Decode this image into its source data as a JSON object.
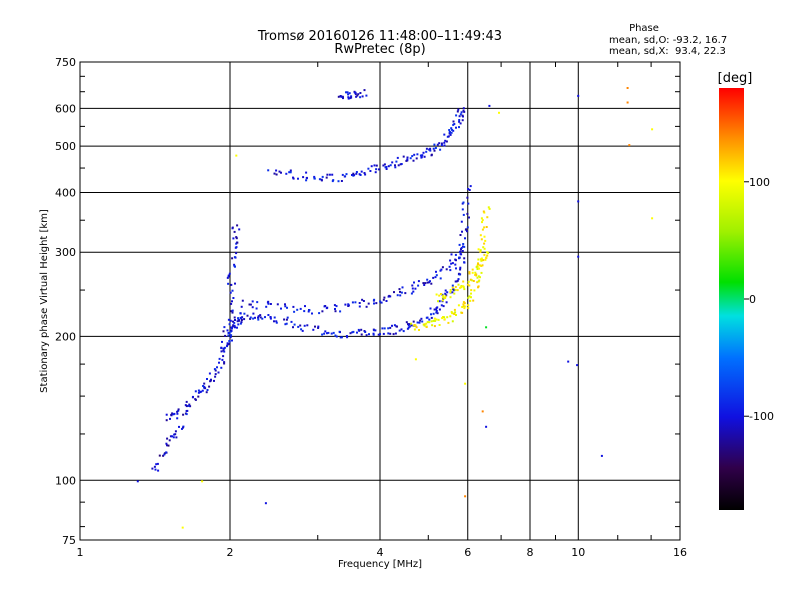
{
  "chart_data": {
    "type": "scatter",
    "title": "Tromsø 20160126 11:48:00–11:49:43",
    "subtitle": "RwPretec (8p)",
    "xlabel": "Frequency [MHz]",
    "ylabel": "Stationary phase Virtual Height [km]",
    "x_scale": "log",
    "y_scale": "log",
    "xlim": [
      1,
      16
    ],
    "ylim": [
      75,
      750
    ],
    "x_ticks": [
      1,
      2,
      4,
      6,
      8,
      10,
      16
    ],
    "x_tick_labels": [
      "1",
      "2",
      "4",
      "6",
      "8",
      "10",
      "16"
    ],
    "y_ticks": [
      75,
      100,
      200,
      300,
      400,
      500,
      600,
      750
    ],
    "y_tick_labels": [
      "75",
      "100",
      "200",
      "300",
      "400",
      "500",
      "600",
      "750"
    ],
    "grid": true,
    "stats": {
      "heading": "Phase",
      "line_o": "mean, sd,O: -93.2, 16.7",
      "line_x": "mean, sd,X:  93.4, 22.3"
    },
    "colorbar": {
      "label": "[deg]",
      "range": [
        -180,
        180
      ],
      "ticks": [
        100,
        0,
        -100
      ],
      "tick_labels": [
        "100",
        "0",
        "-100"
      ]
    },
    "traces": [
      {
        "mode": "O",
        "phase": -100,
        "points": [
          [
            1.95,
            190
          ],
          [
            2.0,
            205
          ],
          [
            2.05,
            215
          ],
          [
            2.1,
            222
          ],
          [
            2.3,
            222
          ],
          [
            2.6,
            215
          ],
          [
            3.0,
            206
          ],
          [
            3.4,
            203
          ],
          [
            3.8,
            204
          ],
          [
            4.2,
            207
          ],
          [
            4.6,
            212
          ],
          [
            5.0,
            222
          ],
          [
            5.3,
            235
          ],
          [
            5.6,
            258
          ],
          [
            5.8,
            290
          ],
          [
            5.9,
            340
          ],
          [
            5.95,
            420
          ]
        ]
      },
      {
        "mode": "O",
        "phase": -100,
        "points": [
          [
            2.1,
            235
          ],
          [
            2.5,
            232
          ],
          [
            3.0,
            228
          ],
          [
            3.5,
            232
          ],
          [
            4.0,
            240
          ],
          [
            4.5,
            250
          ],
          [
            5.0,
            262
          ],
          [
            5.5,
            282
          ],
          [
            5.8,
            310
          ]
        ]
      },
      {
        "mode": "O",
        "phase": -100,
        "points": [
          [
            2.4,
            445
          ],
          [
            2.8,
            435
          ],
          [
            3.2,
            430
          ],
          [
            3.6,
            438
          ],
          [
            4.0,
            455
          ],
          [
            4.4,
            468
          ],
          [
            4.8,
            480
          ],
          [
            5.2,
            498
          ],
          [
            5.5,
            530
          ],
          [
            5.7,
            570
          ],
          [
            5.85,
            600
          ]
        ]
      },
      {
        "mode": "O",
        "phase": -105,
        "points": [
          [
            1.5,
            135
          ],
          [
            1.6,
            140
          ],
          [
            1.7,
            150
          ],
          [
            1.8,
            160
          ],
          [
            1.9,
            175
          ],
          [
            1.95,
            200
          ],
          [
            2.0,
            250
          ],
          [
            2.02,
            300
          ],
          [
            2.05,
            350
          ]
        ]
      },
      {
        "mode": "O",
        "phase": -110,
        "points": [
          [
            1.4,
            105
          ],
          [
            1.5,
            120
          ],
          [
            1.6,
            132
          ]
        ]
      },
      {
        "mode": "O",
        "phase": -100,
        "points": [
          [
            3.3,
            640
          ],
          [
            3.5,
            645
          ],
          [
            3.7,
            648
          ]
        ]
      },
      {
        "mode": "X",
        "phase": 100,
        "points": [
          [
            4.6,
            210
          ],
          [
            5.0,
            212
          ],
          [
            5.4,
            218
          ],
          [
            5.8,
            228
          ],
          [
            6.1,
            245
          ],
          [
            6.3,
            275
          ],
          [
            6.45,
            320
          ],
          [
            6.5,
            380
          ]
        ]
      },
      {
        "mode": "X",
        "phase": 100,
        "points": [
          [
            5.2,
            240
          ],
          [
            5.6,
            250
          ],
          [
            6.0,
            262
          ],
          [
            6.3,
            285
          ],
          [
            6.5,
            300
          ]
        ]
      }
    ],
    "scatter": [
      {
        "x": 1.6,
        "y": 80,
        "phase": 100
      },
      {
        "x": 2.05,
        "y": 480,
        "phase": 100
      },
      {
        "x": 2.35,
        "y": 90,
        "phase": -100
      },
      {
        "x": 4.7,
        "y": 180,
        "phase": 100
      },
      {
        "x": 5.9,
        "y": 160,
        "phase": 100
      },
      {
        "x": 5.9,
        "y": 93,
        "phase": 140
      },
      {
        "x": 6.4,
        "y": 140,
        "phase": 140
      },
      {
        "x": 6.5,
        "y": 130,
        "phase": -100
      },
      {
        "x": 6.5,
        "y": 210,
        "phase": 10
      },
      {
        "x": 6.6,
        "y": 610,
        "phase": -100
      },
      {
        "x": 6.9,
        "y": 590,
        "phase": 100
      },
      {
        "x": 9.5,
        "y": 178,
        "phase": -100
      },
      {
        "x": 9.9,
        "y": 175,
        "phase": -100
      },
      {
        "x": 9.95,
        "y": 385,
        "phase": -100
      },
      {
        "x": 9.95,
        "y": 295,
        "phase": -100
      },
      {
        "x": 9.95,
        "y": 640,
        "phase": -100
      },
      {
        "x": 11.1,
        "y": 113,
        "phase": -100
      },
      {
        "x": 12.5,
        "y": 665,
        "phase": 140
      },
      {
        "x": 12.5,
        "y": 620,
        "phase": 140
      },
      {
        "x": 12.6,
        "y": 505,
        "phase": 140
      },
      {
        "x": 14.0,
        "y": 545,
        "phase": 100
      },
      {
        "x": 14.0,
        "y": 355,
        "phase": 100
      },
      {
        "x": 1.3,
        "y": 100,
        "phase": -100
      },
      {
        "x": 1.75,
        "y": 100,
        "phase": 100
      }
    ]
  }
}
